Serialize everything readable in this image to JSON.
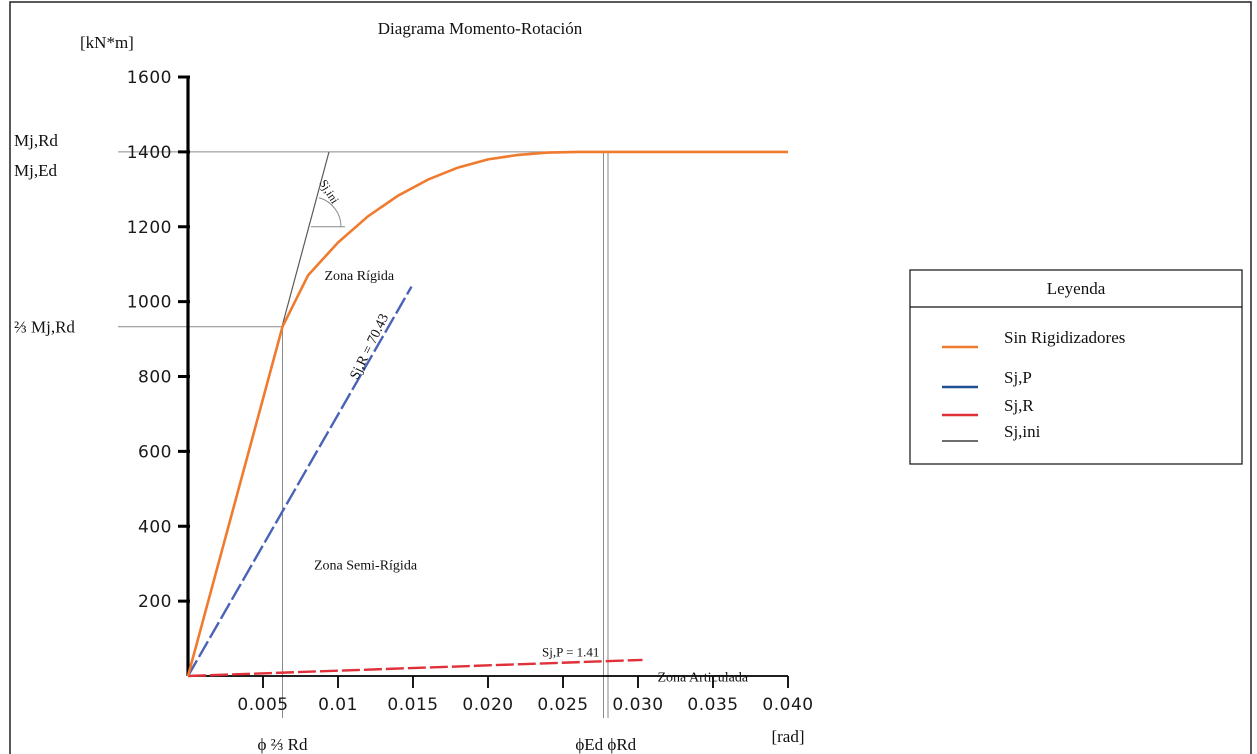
{
  "chart_data": {
    "type": "line",
    "title": "Diagrama Momento-Rotación",
    "ylabel": "[kN*m]",
    "xlabel": "[rad]",
    "xlim": [
      0,
      0.04
    ],
    "ylim": [
      0,
      1600
    ],
    "x_ticks": [
      0.005,
      0.01,
      0.015,
      0.02,
      0.025,
      0.03,
      0.035,
      0.04
    ],
    "x_tick_labels": [
      "0.005",
      "0.01",
      "0.015",
      "0.020",
      "0.025",
      "0.030",
      "0.035",
      "0.040"
    ],
    "y_ticks": [
      200,
      400,
      600,
      800,
      1000,
      1200,
      1400,
      1600
    ],
    "y_tick_labels": [
      "200",
      "400",
      "600",
      "800",
      "1000",
      "1200",
      "1400",
      "1600"
    ],
    "series": [
      {
        "name": "Sin Rigidizadores",
        "color": "#f07b2e",
        "style": "solid",
        "x": [
          0,
          0.0063,
          0.008,
          0.01,
          0.012,
          0.014,
          0.016,
          0.018,
          0.02,
          0.022,
          0.024,
          0.026,
          0.028,
          0.03,
          0.04
        ],
        "y": [
          0,
          933,
          1070,
          1158,
          1228,
          1283,
          1326,
          1358,
          1380,
          1392,
          1398,
          1400,
          1400,
          1400,
          1400
        ]
      },
      {
        "name": "Sj,P",
        "color": "#4a62b8",
        "style": "dashed",
        "x": [
          0,
          0.0149
        ],
        "y": [
          0,
          1040
        ]
      },
      {
        "name": "Sj,R",
        "color": "#e0303a",
        "style": "dashed",
        "x": [
          0,
          0.0303
        ],
        "y": [
          0,
          43
        ]
      },
      {
        "name": "Sj,ini",
        "color": "#5a5a5a",
        "style": "solid",
        "x": [
          0,
          0.0094
        ],
        "y": [
          0,
          1400
        ]
      }
    ],
    "annotations": {
      "mjrd": "Mj,Rd",
      "mjed": "Mj,Ed",
      "two_thirds_mjrd": "⅔ Mj,Rd",
      "phi_two_thirds_rd": "ϕ ⅔ Rd",
      "phi_ed_phi_rd": "ϕEd ϕRd",
      "zona_rigida": "Zona Rígida",
      "zona_semi_rigida": "Zona Semi-Rígida",
      "zona_articulada": "Zona Articulada",
      "sjr_label": "Sj,R = 70.43",
      "sjp_label": "Sj,P = 1.41",
      "sjini_label": "Sj,ini"
    },
    "reference_values": {
      "mjrd_y": 1400,
      "two_thirds_y": 933,
      "phi_two_thirds_x": 0.0063,
      "phi_ed_x": 0.0277,
      "phi_rd_x": 0.028
    },
    "legend": {
      "title": "Leyenda",
      "position": "right",
      "items": [
        "Sin Rigidizadores",
        "Sj,P",
        "Sj,R",
        "Sj,ini"
      ],
      "swatch_colors": [
        "#f07b2e",
        "#1f4f8f",
        "#e0303a",
        "#5a5a5a"
      ]
    },
    "grid": false
  }
}
